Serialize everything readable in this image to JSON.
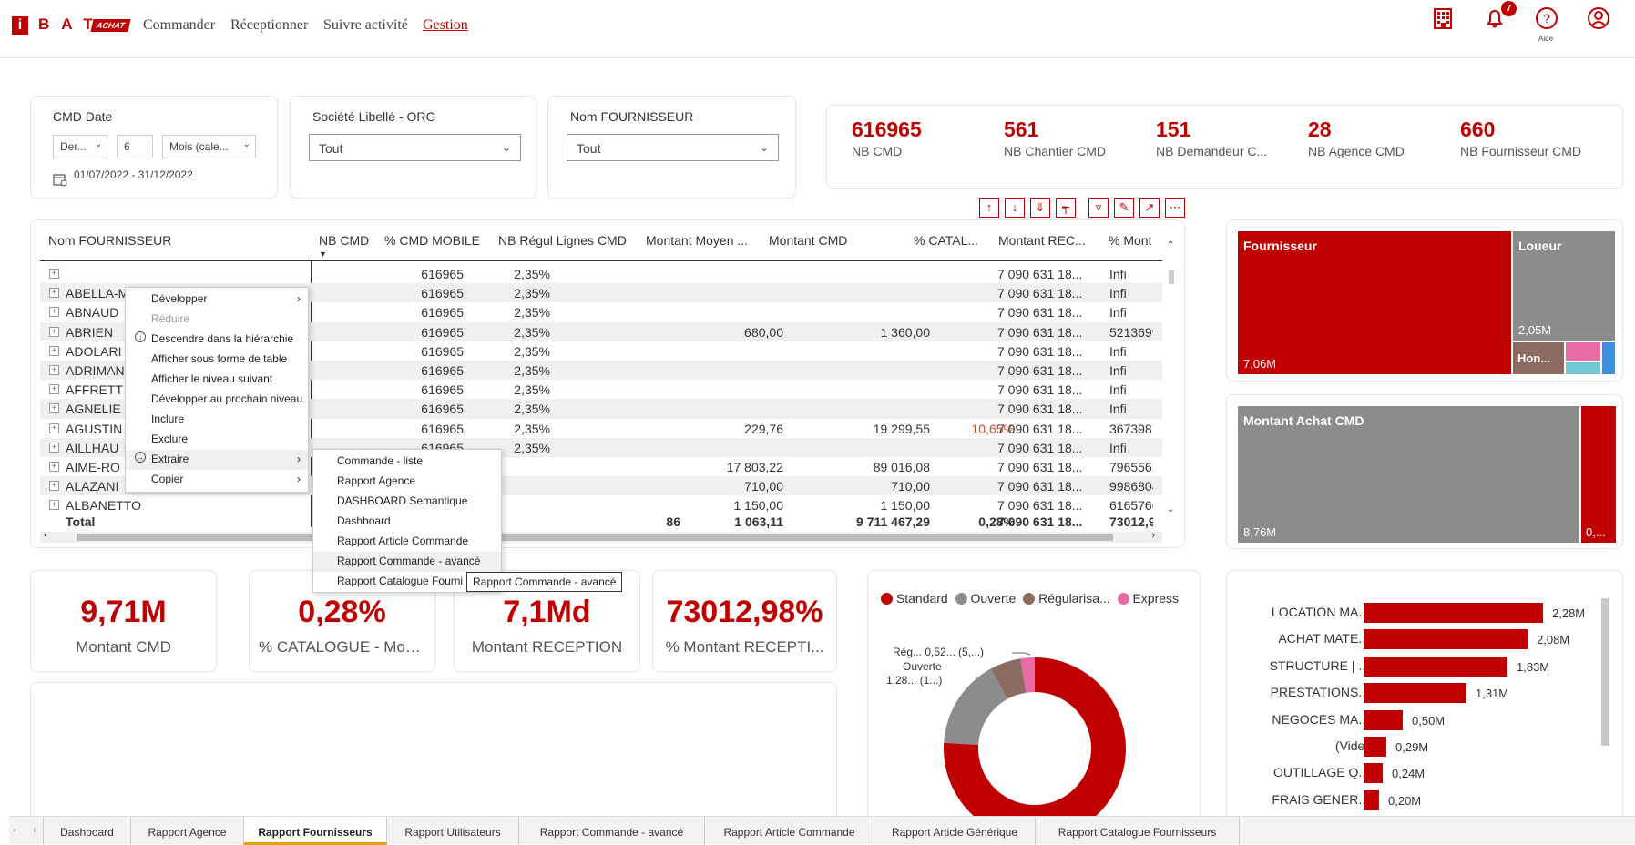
{
  "nav": {
    "logo_i": "i",
    "logo_bat": "BAT",
    "logo_achat": "ACHAT",
    "items": [
      "Commander",
      "Réceptionner",
      "Suivre activité",
      "Gestion"
    ],
    "notif_count": "7",
    "help_label": "Aide"
  },
  "slicers": {
    "cmd_date": {
      "title": "CMD Date",
      "mode": "Der...",
      "count": "6",
      "unit": "Mois (cale...",
      "range": "01/07/2022 - 31/12/2022"
    },
    "societe": {
      "title": "Société Libellé - ORG",
      "value": "Tout"
    },
    "fournisseur": {
      "title": "Nom FOURNISSEUR",
      "value": "Tout"
    }
  },
  "kpis": [
    {
      "value": "616965",
      "label": "NB CMD"
    },
    {
      "value": "561",
      "label": "NB Chantier CMD"
    },
    {
      "value": "151",
      "label": "NB Demandeur C..."
    },
    {
      "value": "28",
      "label": "NB Agence CMD"
    },
    {
      "value": "660",
      "label": "NB Fournisseur CMD"
    }
  ],
  "table": {
    "headers": [
      "Nom FOURNISSEUR",
      "NB CMD",
      "% CMD MOBILE",
      "NB Régul Lignes CMD",
      "Montant Moyen ...",
      "Montant CMD",
      "% CATAL...",
      "Montant REC...",
      "% Montar"
    ],
    "rows": [
      {
        "name": "",
        "nb": "616965",
        "mob": "2,35%",
        "regul": "",
        "moyen": "",
        "montant": "",
        "catal": "",
        "rec": "7 090 631 18...",
        "pct": "Infi"
      },
      {
        "name": "ABELLA-MENDRADO",
        "nb": "616965",
        "mob": "2,35%",
        "regul": "",
        "moyen": "",
        "montant": "",
        "catal": "",
        "rec": "7 090 631 18...",
        "pct": "Infi"
      },
      {
        "name": "ABNAUD",
        "nb": "616965",
        "mob": "2,35%",
        "regul": "",
        "moyen": "",
        "montant": "",
        "catal": "",
        "rec": "7 090 631 18...",
        "pct": "Infi"
      },
      {
        "name": "ABRIEN",
        "nb": "616965",
        "mob": "2,35%",
        "regul": "",
        "moyen": "680,00",
        "montant": "1 360,00",
        "catal": "",
        "rec": "7 090 631 18...",
        "pct": "5213699."
      },
      {
        "name": "ADOLARI",
        "nb": "616965",
        "mob": "2,35%",
        "regul": "",
        "moyen": "",
        "montant": "",
        "catal": "",
        "rec": "7 090 631 18...",
        "pct": "Infi"
      },
      {
        "name": "ADRIMAN",
        "nb": "616965",
        "mob": "2,35%",
        "regul": "",
        "moyen": "",
        "montant": "",
        "catal": "",
        "rec": "7 090 631 18...",
        "pct": "Infi"
      },
      {
        "name": "AFFRETT",
        "nb": "616965",
        "mob": "2,35%",
        "regul": "",
        "moyen": "",
        "montant": "",
        "catal": "",
        "rec": "7 090 631 18...",
        "pct": "Infi"
      },
      {
        "name": "AGNELIE",
        "nb": "616965",
        "mob": "2,35%",
        "regul": "",
        "moyen": "",
        "montant": "",
        "catal": "",
        "rec": "7 090 631 18...",
        "pct": "Infi"
      },
      {
        "name": "AGUSTIN",
        "nb": "616965",
        "mob": "2,35%",
        "regul": "",
        "moyen": "229,76",
        "montant": "19 299,55",
        "catal": "10,65%",
        "rec": "7 090 631 18...",
        "pct": "3673987."
      },
      {
        "name": "AILLHAU",
        "nb": "616965",
        "mob": "2,35%",
        "regul": "",
        "moyen": "",
        "montant": "",
        "catal": "",
        "rec": "7 090 631 18...",
        "pct": "Infi"
      },
      {
        "name": "AIME-RO",
        "nb": "",
        "mob": "",
        "regul": "",
        "moyen": "17 803,22",
        "montant": "89 016,08",
        "catal": "",
        "rec": "7 090 631 18...",
        "pct": "7965562,"
      },
      {
        "name": "ALAZANI",
        "nb": "",
        "mob": "",
        "regul": "",
        "moyen": "710,00",
        "montant": "710,00",
        "catal": "",
        "rec": "7 090 631 18...",
        "pct": "9986804."
      },
      {
        "name": "ALBANETTO",
        "nb": "",
        "mob": "",
        "regul": "",
        "moyen": "1 150,00",
        "montant": "1 150,00",
        "catal": "",
        "rec": "7 090 631 18...",
        "pct": "6165766."
      }
    ],
    "total": {
      "name": "Total",
      "regul": "86",
      "moyen": "1 063,11",
      "montant": "9 711 467,29",
      "catal": "0,28%",
      "rec": "7 090 631 18...",
      "pct": "73012,98"
    }
  },
  "context_menu": {
    "items": [
      "Développer",
      "Réduire",
      "Descendre dans la hiérarchie",
      "Afficher sous forme de table",
      "Afficher le niveau suivant",
      "Développer au prochain niveau",
      "Inclure",
      "Exclure",
      "Extraire",
      "Copier"
    ]
  },
  "submenu": {
    "items": [
      "Commande - liste",
      "Rapport Agence",
      "DASHBOARD Semantique",
      "Dashboard",
      "Rapport Article Commande",
      "Rapport Commande - avancé",
      "Rapport Catalogue Fourni"
    ],
    "tooltip": "Rapport Commande - avancé"
  },
  "treemap1": {
    "a": "Fournisseur",
    "a_val": "7,06M",
    "b": "Loueur",
    "b_val": "2,05M",
    "c": "Hon..."
  },
  "treemap2": {
    "a": "Montant Achat CMD",
    "a_val": "8,76M",
    "b_val": "0,..."
  },
  "big_kpis": [
    {
      "value": "9,71M",
      "label": "Montant CMD"
    },
    {
      "value": "0,28%",
      "label": "% CATALOGUE - Mon..."
    },
    {
      "value": "7,1Md",
      "label": "Montant RECEPTION"
    },
    {
      "value": "73012,98%",
      "label": "% Montant RECEPTI..."
    }
  ],
  "donut": {
    "legend": [
      "Standard",
      "Ouverte",
      "Régularisa...",
      "Express"
    ],
    "colors": [
      "#c00000",
      "#8c8c8c",
      "#8c6b60",
      "#e86aa6"
    ],
    "label_reg": "Rég... 0,52... (5,...)",
    "label_ouv1": "Ouverte",
    "label_ouv2": "1,28... (1...)"
  },
  "bars": {
    "categories": [
      "LOCATION MA...",
      "ACHAT MATE...",
      "STRUCTURE | ...",
      "PRESTATIONS...",
      "NEGOCES MA...",
      "(Vide)",
      "OUTILLAGE Q...",
      "FRAIS GENER..."
    ],
    "values": [
      2.28,
      2.08,
      1.83,
      1.31,
      0.5,
      0.29,
      0.24,
      0.2
    ],
    "labels": [
      "2,28M",
      "2,08M",
      "1,83M",
      "1,31M",
      "0,50M",
      "0,29M",
      "0,24M",
      "0,20M"
    ]
  },
  "tabs": [
    "Dashboard",
    "Rapport Agence",
    "Rapport Fournisseurs",
    "Rapport Utilisateurs",
    "Rapport Commande - avancé",
    "Rapport Article Commande",
    "Rapport Article Générique",
    "Rapport Catalogue Fournisseurs"
  ]
}
